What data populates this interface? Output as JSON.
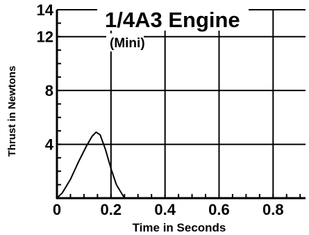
{
  "chart_data": {
    "type": "line",
    "title": "1/4A3 Engine",
    "subtitle": "(Mini)",
    "xlabel": "Time in Seconds",
    "ylabel": "Thrust in Newtons",
    "xlim": [
      0,
      0.92
    ],
    "ylim": [
      0,
      14
    ],
    "x_ticks": [
      0,
      0.2,
      0.4,
      0.6,
      0.8
    ],
    "x_tick_labels": [
      "0",
      "0.2",
      "0.4",
      "0.6",
      "0.8"
    ],
    "y_ticks": [
      4,
      8,
      12,
      14
    ],
    "y_tick_labels": [
      "4",
      "8",
      "12",
      "14"
    ],
    "grid": true,
    "series": [
      {
        "x": [
          0,
          0.02,
          0.05,
          0.08,
          0.11,
          0.13,
          0.145,
          0.16,
          0.18,
          0.2,
          0.22,
          0.25
        ],
        "y": [
          0,
          0.4,
          1.4,
          2.7,
          3.9,
          4.6,
          4.9,
          4.7,
          3.6,
          2.2,
          1.0,
          0
        ]
      }
    ],
    "line_color": "#000000"
  }
}
